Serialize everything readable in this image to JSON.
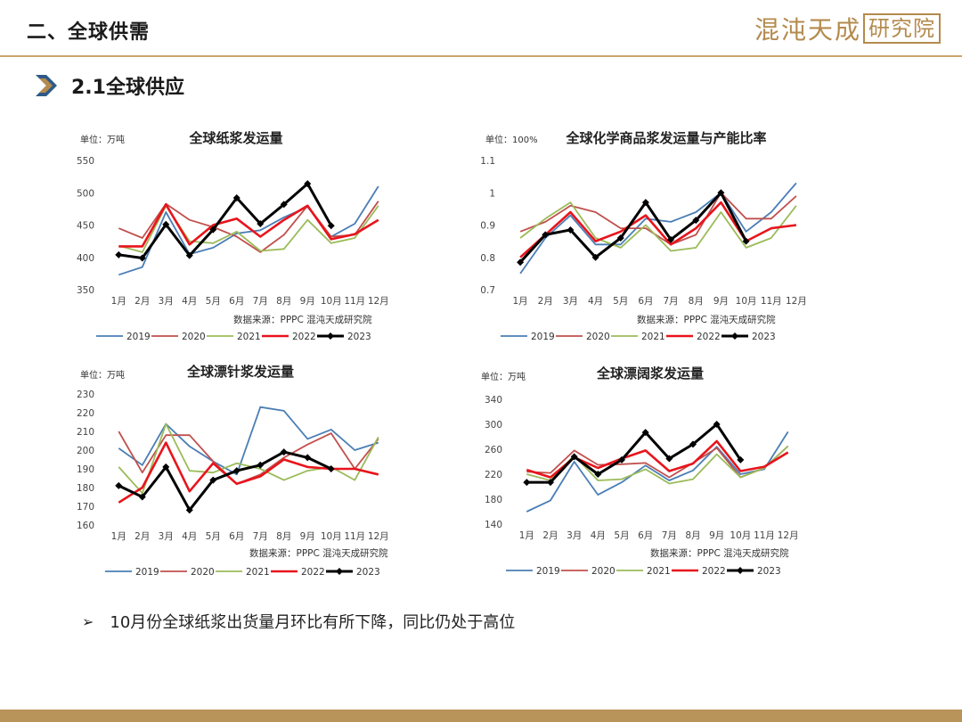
{
  "header": {
    "section_title": "二、全球供需",
    "brand": "混沌天成",
    "brand_box": "研究院"
  },
  "sub_header": {
    "title": "2.1全球供应"
  },
  "bullet": {
    "marker": "➢",
    "text": "10月份全球纸浆出货量月环比有所下降，同比仍处于高位"
  },
  "colors": {
    "accent": "#c9a56a",
    "footer": "#b8935a",
    "brand": "#b48a4e",
    "chevron": "#2e5a87"
  },
  "series_colors": {
    "2019": "#4a7eb5",
    "2020": "#c0504d",
    "2021": "#9bbb59",
    "2022": "#e8141c",
    "2023": "#000000"
  },
  "chart_data": [
    {
      "type": "line",
      "title": "全球纸浆发运量",
      "unit_label": "单位：万吨",
      "source": "数据来源：PPPC 混沌天成研究院",
      "categories": [
        "1月",
        "2月",
        "3月",
        "4月",
        "5月",
        "6月",
        "7月",
        "8月",
        "9月",
        "10月",
        "11月",
        "12月"
      ],
      "ylim": [
        350,
        550
      ],
      "yticks": [
        350,
        400,
        450,
        500,
        550
      ],
      "series": [
        {
          "name": "2019",
          "values": [
            373,
            385,
            470,
            405,
            415,
            437,
            442,
            462,
            478,
            432,
            452,
            510
          ]
        },
        {
          "name": "2020",
          "values": [
            445,
            430,
            483,
            458,
            447,
            432,
            408,
            435,
            480,
            432,
            435,
            487
          ]
        },
        {
          "name": "2021",
          "values": [
            418,
            408,
            480,
            425,
            422,
            440,
            410,
            413,
            458,
            422,
            430,
            480
          ]
        },
        {
          "name": "2022",
          "values": [
            417,
            417,
            482,
            420,
            450,
            460,
            432,
            458,
            480,
            428,
            436,
            458
          ]
        },
        {
          "name": "2023",
          "values": [
            404,
            399,
            451,
            403,
            443,
            492,
            452,
            482,
            514,
            449,
            null,
            null
          ]
        }
      ]
    },
    {
      "type": "line",
      "title": "全球化学商品浆发运量与产能比率",
      "unit_label": "单位：100%",
      "source": "数据来源：PPPC 混沌天成研究院",
      "categories": [
        "1月",
        "2月",
        "3月",
        "4月",
        "5月",
        "6月",
        "7月",
        "8月",
        "9月",
        "10月",
        "11月",
        "12月"
      ],
      "ylim": [
        0.7,
        1.1
      ],
      "yticks": [
        0.7,
        0.8,
        0.9,
        1,
        1.1
      ],
      "series": [
        {
          "name": "2019",
          "values": [
            0.75,
            0.86,
            0.93,
            0.84,
            0.84,
            0.92,
            0.91,
            0.94,
            1.0,
            0.88,
            0.94,
            1.03
          ]
        },
        {
          "name": "2020",
          "values": [
            0.88,
            0.91,
            0.96,
            0.94,
            0.89,
            0.89,
            0.84,
            0.87,
            1.0,
            0.92,
            0.92,
            0.99
          ]
        },
        {
          "name": "2021",
          "values": [
            0.86,
            0.92,
            0.97,
            0.86,
            0.83,
            0.9,
            0.82,
            0.83,
            0.94,
            0.83,
            0.86,
            0.96
          ]
        },
        {
          "name": "2022",
          "values": [
            0.8,
            0.87,
            0.94,
            0.85,
            0.88,
            0.93,
            0.84,
            0.89,
            0.97,
            0.85,
            0.89,
            0.9
          ]
        },
        {
          "name": "2023",
          "values": [
            0.785,
            0.87,
            0.885,
            0.8,
            0.86,
            0.97,
            0.855,
            0.915,
            1.0,
            0.85,
            null,
            null
          ]
        }
      ]
    },
    {
      "type": "line",
      "title": "全球漂针浆发运量",
      "unit_label": "单位：万吨",
      "source": "数据来源：PPPC 混沌天成研究院",
      "categories": [
        "1月",
        "2月",
        "3月",
        "4月",
        "5月",
        "6月",
        "7月",
        "8月",
        "9月",
        "10月",
        "11月",
        "12月"
      ],
      "ylim": [
        160,
        230
      ],
      "yticks": [
        160,
        170,
        180,
        190,
        200,
        210,
        220,
        230
      ],
      "series": [
        {
          "name": "2019",
          "values": [
            201,
            192,
            214,
            202,
            194,
            187,
            223,
            221,
            206,
            211,
            200,
            204
          ]
        },
        {
          "name": "2020",
          "values": [
            210,
            188,
            208,
            208,
            194,
            182,
            187,
            196,
            203,
            209,
            190,
            206
          ]
        },
        {
          "name": "2021",
          "values": [
            191,
            177,
            214,
            189,
            188,
            193,
            190,
            184,
            189,
            191,
            184,
            207
          ]
        },
        {
          "name": "2022",
          "values": [
            172,
            180,
            204,
            178,
            193,
            182,
            186,
            195,
            191,
            190,
            190,
            187
          ]
        },
        {
          "name": "2023",
          "values": [
            181,
            175,
            191,
            168,
            184,
            189,
            192,
            199,
            196,
            190,
            null,
            null
          ]
        }
      ]
    },
    {
      "type": "line",
      "title": "全球漂阔浆发运量",
      "unit_label": "单位：万吨",
      "source": "数据来源：PPPC 混沌天成研究院",
      "categories": [
        "1月",
        "2月",
        "3月",
        "4月",
        "5月",
        "6月",
        "7月",
        "8月",
        "9月",
        "10月",
        "11月",
        "12月"
      ],
      "ylim": [
        140,
        340
      ],
      "yticks": [
        140,
        180,
        220,
        260,
        300,
        340
      ],
      "series": [
        {
          "name": "2019",
          "values": [
            160,
            178,
            240,
            187,
            207,
            234,
            210,
            226,
            264,
            220,
            228,
            288
          ]
        },
        {
          "name": "2020",
          "values": [
            224,
            222,
            258,
            235,
            236,
            238,
            215,
            238,
            262,
            215,
            230,
            265
          ]
        },
        {
          "name": "2021",
          "values": [
            220,
            210,
            250,
            210,
            212,
            228,
            205,
            212,
            252,
            215,
            230,
            265
          ]
        },
        {
          "name": "2022",
          "values": [
            227,
            215,
            247,
            230,
            245,
            258,
            225,
            237,
            273,
            225,
            232,
            255
          ]
        },
        {
          "name": "2023",
          "values": [
            207,
            207,
            248,
            220,
            243,
            287,
            245,
            268,
            300,
            243,
            null,
            null
          ]
        }
      ]
    }
  ]
}
